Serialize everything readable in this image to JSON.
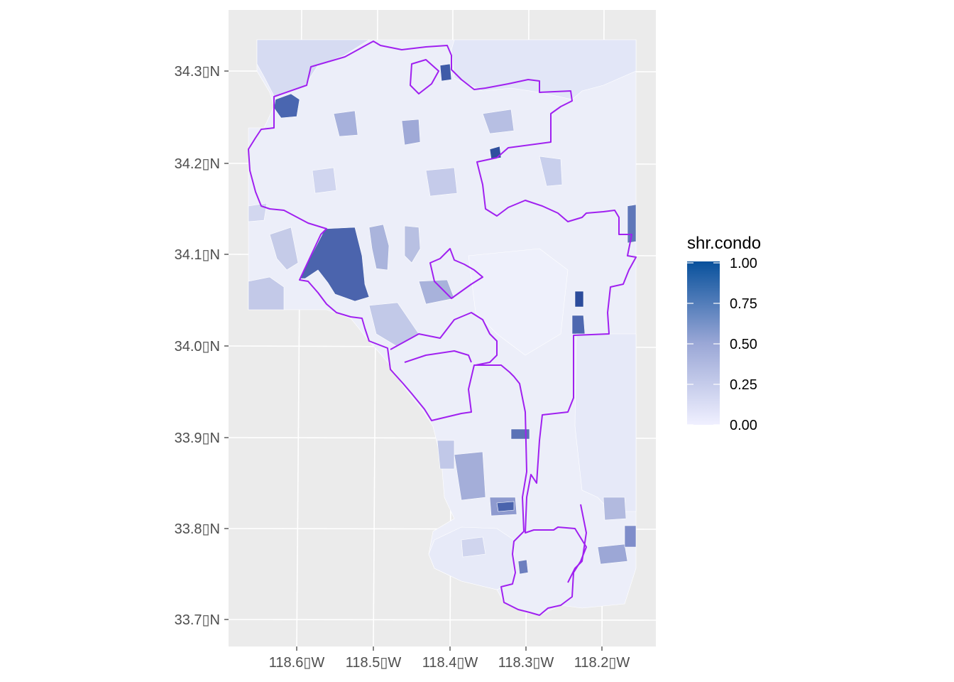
{
  "map": {
    "y_ticks": [
      {
        "label": "34.3▯N",
        "lat": 34.3
      },
      {
        "label": "34.2▯N",
        "lat": 34.2
      },
      {
        "label": "34.1▯N",
        "lat": 34.1
      },
      {
        "label": "34.0▯N",
        "lat": 34.0
      },
      {
        "label": "33.9▯N",
        "lat": 33.9
      },
      {
        "label": "33.8▯N",
        "lat": 33.8
      },
      {
        "label": "33.7▯N",
        "lat": 33.7
      }
    ],
    "x_ticks": [
      {
        "label": "118.6▯W",
        "lon": -118.6
      },
      {
        "label": "118.5▯W",
        "lon": -118.5
      },
      {
        "label": "118.4▯W",
        "lon": -118.4
      },
      {
        "label": "118.3▯W",
        "lon": -118.3
      },
      {
        "label": "118.2▯W",
        "lon": -118.2
      }
    ],
    "lon_range": [
      -118.69,
      -118.13
    ],
    "lat_range": [
      33.67,
      34.36
    ],
    "background_color": "#ebebeb",
    "gridline_color": "#ffffff",
    "boundary_color": "#a020f0"
  },
  "legend": {
    "title": "shr.condo",
    "labels": [
      "1.00",
      "0.75",
      "0.50",
      "0.25",
      "0.00"
    ],
    "values": [
      1.0,
      0.75,
      0.5,
      0.25,
      0.0
    ],
    "color_low": "#f0f0ff",
    "color_high": "#08519c"
  }
}
